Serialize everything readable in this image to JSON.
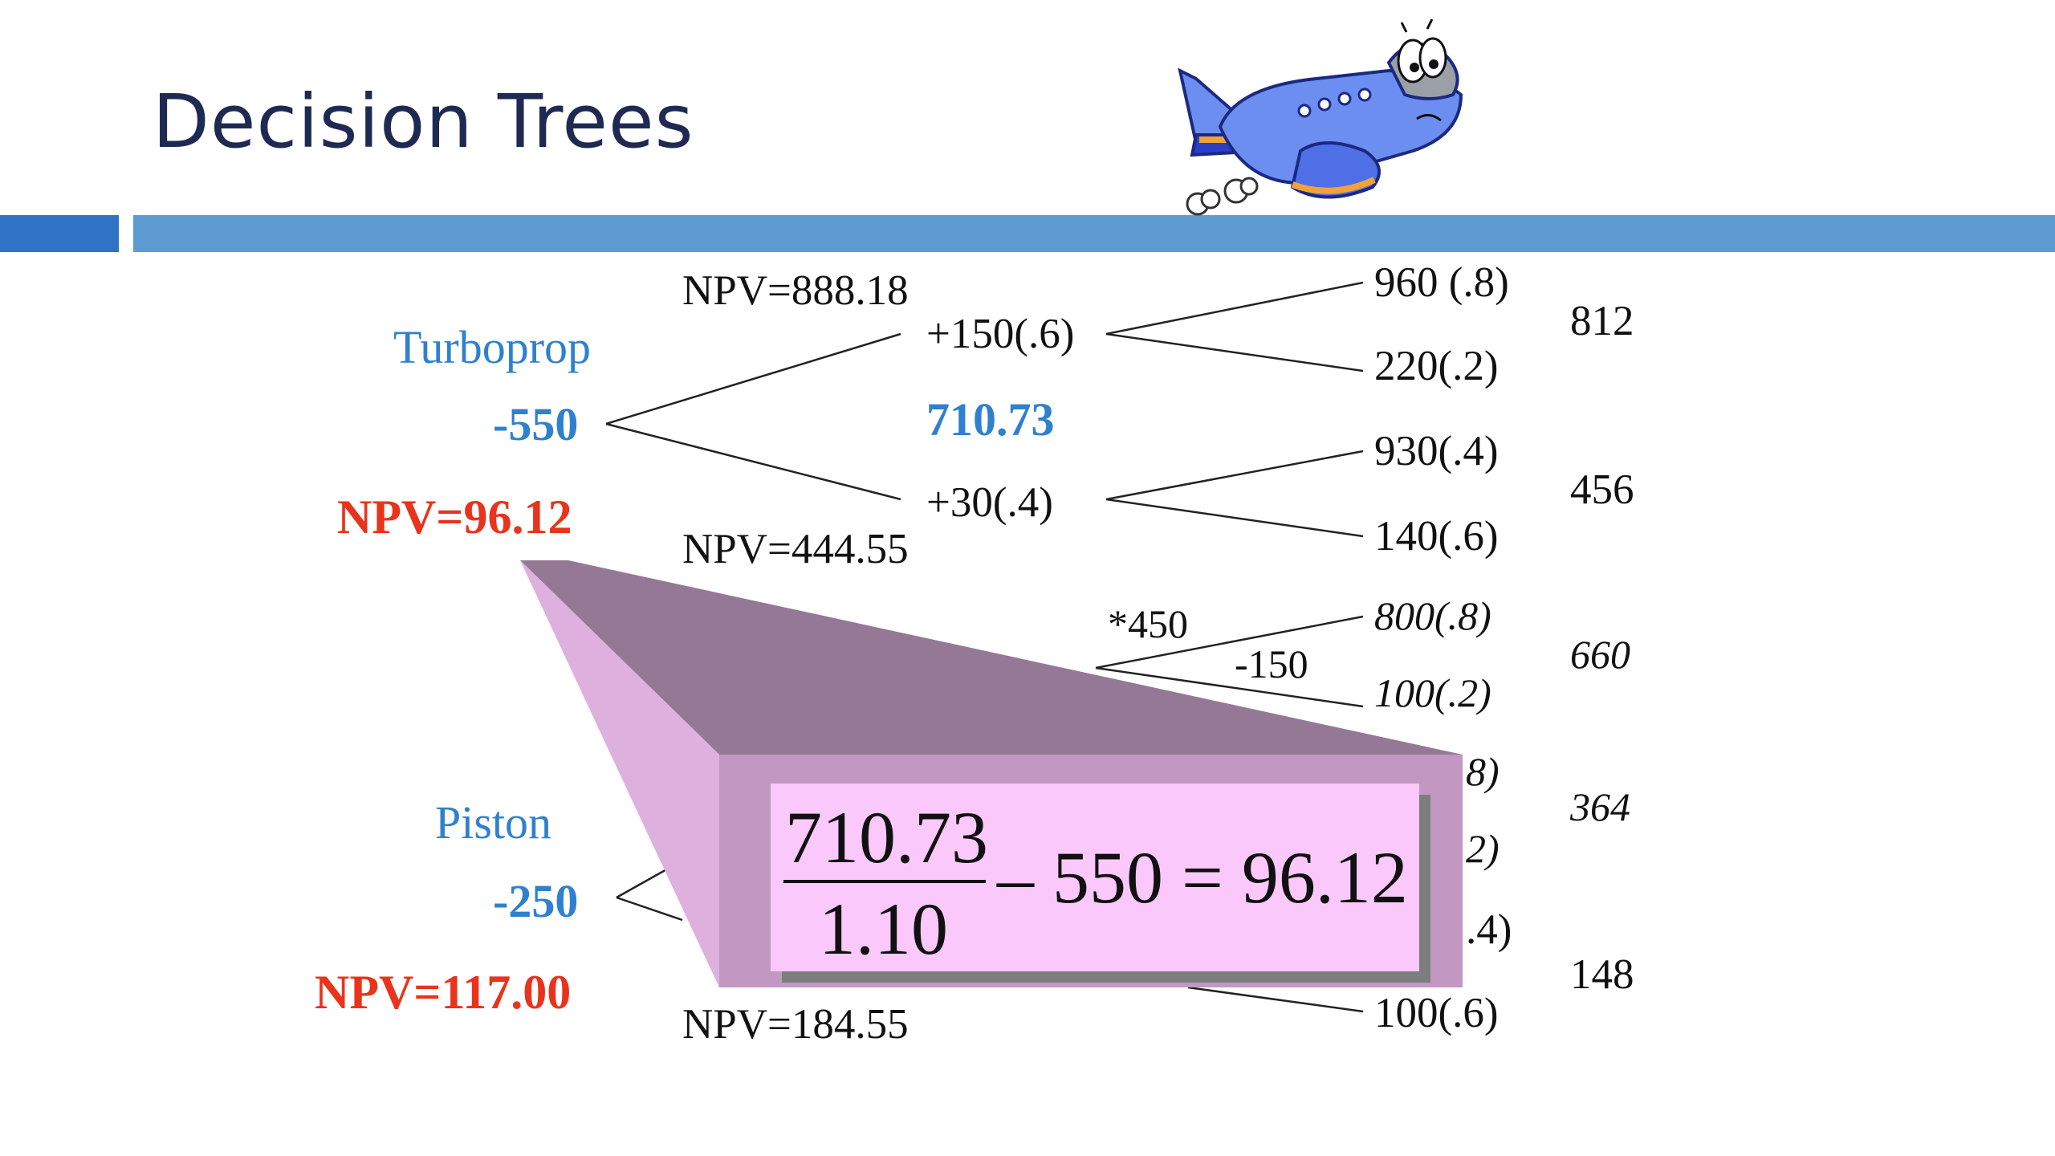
{
  "slide": {
    "title": "Decision Trees"
  },
  "tree": {
    "turboprop": {
      "label": "Turboprop",
      "cost": "-550",
      "npv": "NPV=96.12",
      "branch_high_npv": "NPV=888.18",
      "branch_low_npv": "NPV=444.55",
      "high": "+150(.6)",
      "low": "+30(.4)",
      "mid_value": "710.73",
      "out1": "960 (.8)",
      "out2": "220(.2)",
      "out3": "930(.4)",
      "out4": "140(.6)",
      "ev1": "812",
      "ev2": "456"
    },
    "expand": {
      "star_label": "*450",
      "neg_label": "-150",
      "out1": "800(.8)",
      "out2": "100(.2)",
      "ev": "660"
    },
    "piston": {
      "label": "Piston",
      "cost": "-250",
      "npv": "NPV=117.00",
      "branch_low_npv": "NPV=184.55",
      "partial1": "8)",
      "partial2": "2)",
      "partial3": ".4)",
      "out_last": "100(.6)",
      "ev1": "364",
      "ev2": "148"
    }
  },
  "formula": {
    "numerator": "710.73",
    "denominator": "1.10",
    "rest": "– 550 = 96.12"
  },
  "icons": {
    "plane": "airplane-cartoon-icon"
  }
}
